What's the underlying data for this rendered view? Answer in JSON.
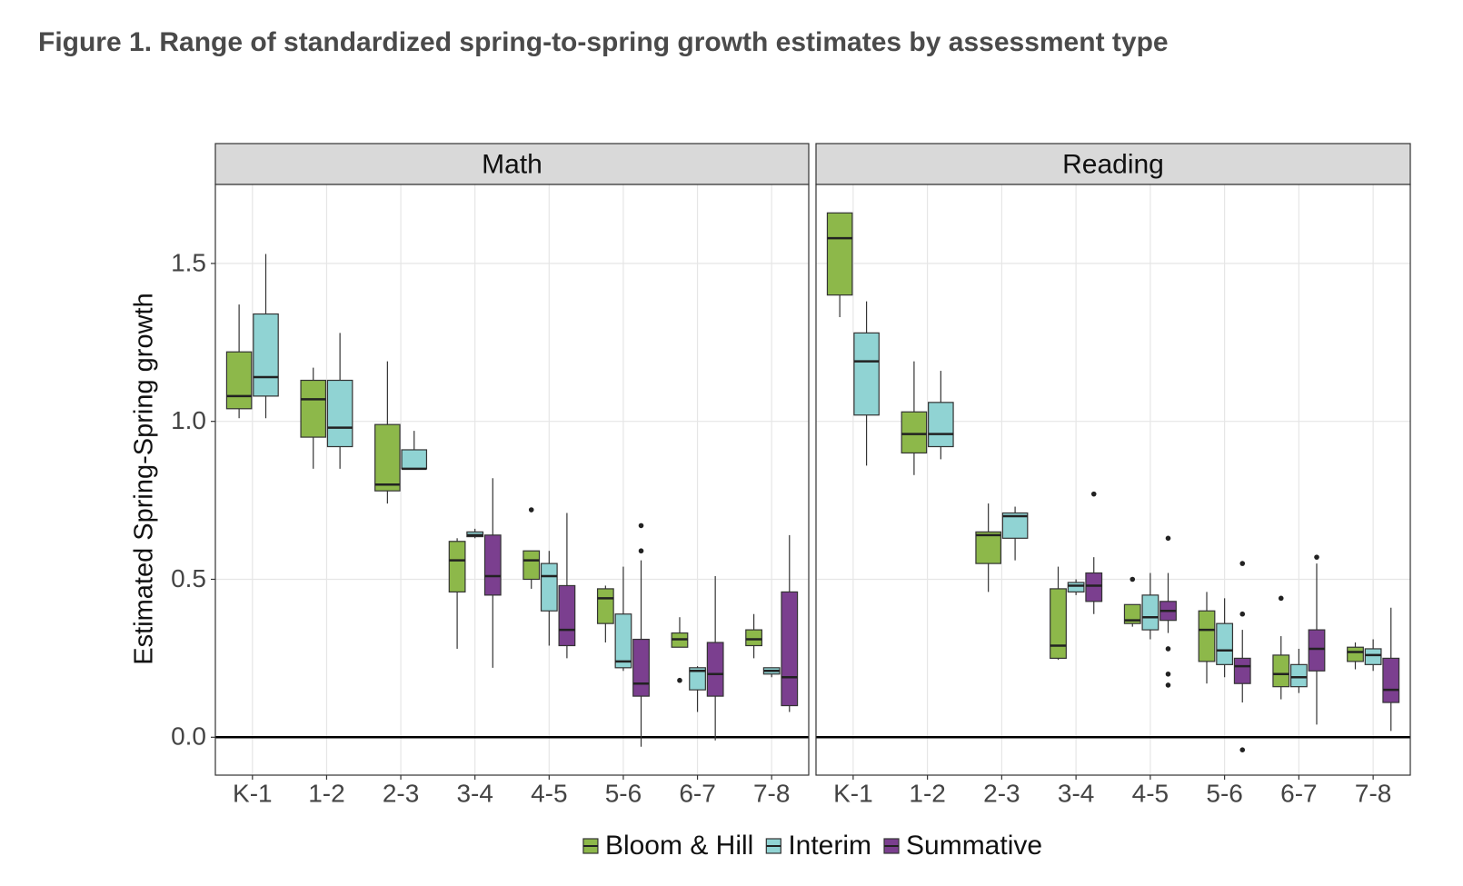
{
  "chart_data": {
    "type": "box",
    "title": "Figure 1. Range of standardized spring-to-spring growth estimates by assessment type",
    "ylabel": "Estimated Spring-Spring growth",
    "categories": [
      "K-1",
      "1-2",
      "2-3",
      "3-4",
      "4-5",
      "5-6",
      "6-7",
      "7-8"
    ],
    "ylim": [
      -0.12,
      1.75
    ],
    "yticks": [
      {
        "value": 0,
        "label": "0.0"
      },
      0.5,
      {
        "value": 1,
        "label": "1.0"
      },
      1.5
    ],
    "hline": 0,
    "grid": true,
    "legend": "bottom",
    "series": [
      {
        "name": "Bloom & Hill",
        "color": "#8db84a"
      },
      {
        "name": "Interim",
        "color": "#90d3d3"
      },
      {
        "name": "Summative",
        "color": "#7b3f8f"
      }
    ],
    "facets": [
      {
        "title": "Math",
        "data": [
          [
            {
              "low": 1.01,
              "q1": 1.04,
              "median": 1.08,
              "q3": 1.22,
              "high": 1.37,
              "outliers": []
            },
            {
              "low": 0.85,
              "q1": 0.95,
              "median": 1.07,
              "q3": 1.13,
              "high": 1.17,
              "outliers": []
            },
            {
              "low": 0.74,
              "q1": 0.78,
              "median": 0.8,
              "q3": 0.99,
              "high": 1.19,
              "outliers": []
            },
            {
              "low": 0.28,
              "q1": 0.46,
              "median": 0.56,
              "q3": 0.62,
              "high": 0.63,
              "outliers": []
            },
            {
              "low": 0.47,
              "q1": 0.5,
              "median": 0.56,
              "q3": 0.59,
              "high": 0.59,
              "outliers": [
                0.72
              ]
            },
            {
              "low": 0.3,
              "q1": 0.36,
              "median": 0.44,
              "q3": 0.47,
              "high": 0.48,
              "outliers": []
            },
            {
              "low": 0.285,
              "q1": 0.285,
              "median": 0.31,
              "q3": 0.33,
              "high": 0.38,
              "outliers": [
                0.18
              ]
            },
            {
              "low": 0.25,
              "q1": 0.29,
              "median": 0.31,
              "q3": 0.34,
              "high": 0.39,
              "outliers": []
            }
          ],
          [
            {
              "low": 1.01,
              "q1": 1.08,
              "median": 1.14,
              "q3": 1.34,
              "high": 1.53,
              "outliers": []
            },
            {
              "low": 0.85,
              "q1": 0.92,
              "median": 0.98,
              "q3": 1.13,
              "high": 1.28,
              "outliers": []
            },
            {
              "low": 0.85,
              "q1": 0.85,
              "median": 0.85,
              "q3": 0.91,
              "high": 0.97,
              "outliers": []
            },
            {
              "low": 0.63,
              "q1": 0.635,
              "median": 0.64,
              "q3": 0.65,
              "high": 0.66,
              "outliers": []
            },
            {
              "low": 0.29,
              "q1": 0.4,
              "median": 0.51,
              "q3": 0.55,
              "high": 0.59,
              "outliers": []
            },
            {
              "low": 0.21,
              "q1": 0.22,
              "median": 0.24,
              "q3": 0.39,
              "high": 0.54,
              "outliers": []
            },
            {
              "low": 0.08,
              "q1": 0.15,
              "median": 0.21,
              "q3": 0.22,
              "high": 0.225,
              "outliers": []
            },
            {
              "low": 0.19,
              "q1": 0.2,
              "median": 0.21,
              "q3": 0.22,
              "high": 0.22,
              "outliers": []
            }
          ],
          [
            null,
            null,
            null,
            {
              "low": 0.22,
              "q1": 0.45,
              "median": 0.51,
              "q3": 0.64,
              "high": 0.82,
              "outliers": []
            },
            {
              "low": 0.25,
              "q1": 0.29,
              "median": 0.34,
              "q3": 0.48,
              "high": 0.71,
              "outliers": []
            },
            {
              "low": -0.03,
              "q1": 0.13,
              "median": 0.17,
              "q3": 0.31,
              "high": 0.56,
              "outliers": [
                0.67,
                0.59
              ]
            },
            {
              "low": -0.01,
              "q1": 0.13,
              "median": 0.2,
              "q3": 0.3,
              "high": 0.51,
              "outliers": []
            },
            {
              "low": 0.08,
              "q1": 0.1,
              "median": 0.19,
              "q3": 0.46,
              "high": 0.64,
              "outliers": []
            }
          ]
        ]
      },
      {
        "title": "Reading",
        "data": [
          [
            {
              "low": 1.33,
              "q1": 1.4,
              "median": 1.58,
              "q3": 1.66,
              "high": 1.66,
              "outliers": []
            },
            {
              "low": 0.83,
              "q1": 0.9,
              "median": 0.96,
              "q3": 1.03,
              "high": 1.19,
              "outliers": []
            },
            {
              "low": 0.46,
              "q1": 0.55,
              "median": 0.64,
              "q3": 0.65,
              "high": 0.74,
              "outliers": []
            },
            {
              "low": 0.245,
              "q1": 0.25,
              "median": 0.29,
              "q3": 0.47,
              "high": 0.54,
              "outliers": []
            },
            {
              "low": 0.35,
              "q1": 0.36,
              "median": 0.37,
              "q3": 0.42,
              "high": 0.42,
              "outliers": [
                0.5
              ]
            },
            {
              "low": 0.17,
              "q1": 0.24,
              "median": 0.34,
              "q3": 0.4,
              "high": 0.46,
              "outliers": []
            },
            {
              "low": 0.12,
              "q1": 0.16,
              "median": 0.2,
              "q3": 0.26,
              "high": 0.32,
              "outliers": [
                0.44
              ]
            },
            {
              "low": 0.215,
              "q1": 0.24,
              "median": 0.27,
              "q3": 0.285,
              "high": 0.3,
              "outliers": []
            }
          ],
          [
            {
              "low": 0.86,
              "q1": 1.02,
              "median": 1.19,
              "q3": 1.28,
              "high": 1.38,
              "outliers": []
            },
            {
              "low": 0.88,
              "q1": 0.92,
              "median": 0.96,
              "q3": 1.06,
              "high": 1.16,
              "outliers": []
            },
            {
              "low": 0.56,
              "q1": 0.63,
              "median": 0.7,
              "q3": 0.71,
              "high": 0.73,
              "outliers": []
            },
            {
              "low": 0.45,
              "q1": 0.46,
              "median": 0.48,
              "q3": 0.49,
              "high": 0.5,
              "outliers": []
            },
            {
              "low": 0.31,
              "q1": 0.34,
              "median": 0.38,
              "q3": 0.45,
              "high": 0.52,
              "outliers": []
            },
            {
              "low": 0.19,
              "q1": 0.23,
              "median": 0.275,
              "q3": 0.36,
              "high": 0.44,
              "outliers": []
            },
            {
              "low": 0.14,
              "q1": 0.16,
              "median": 0.19,
              "q3": 0.23,
              "high": 0.28,
              "outliers": []
            },
            {
              "low": 0.21,
              "q1": 0.23,
              "median": 0.26,
              "q3": 0.28,
              "high": 0.31,
              "outliers": []
            }
          ],
          [
            null,
            null,
            null,
            {
              "low": 0.39,
              "q1": 0.43,
              "median": 0.48,
              "q3": 0.52,
              "high": 0.57,
              "outliers": [
                0.77
              ]
            },
            {
              "low": 0.33,
              "q1": 0.37,
              "median": 0.4,
              "q3": 0.43,
              "high": 0.52,
              "outliers": [
                0.63,
                0.28,
                0.2,
                0.165
              ]
            },
            {
              "low": 0.11,
              "q1": 0.17,
              "median": 0.225,
              "q3": 0.25,
              "high": 0.34,
              "outliers": [
                0.55,
                0.39,
                -0.04
              ]
            },
            {
              "low": 0.04,
              "q1": 0.21,
              "median": 0.28,
              "q3": 0.34,
              "high": 0.55,
              "outliers": [
                0.57
              ]
            },
            {
              "low": 0.02,
              "q1": 0.11,
              "median": 0.15,
              "q3": 0.25,
              "high": 0.41,
              "outliers": []
            }
          ]
        ]
      }
    ]
  }
}
